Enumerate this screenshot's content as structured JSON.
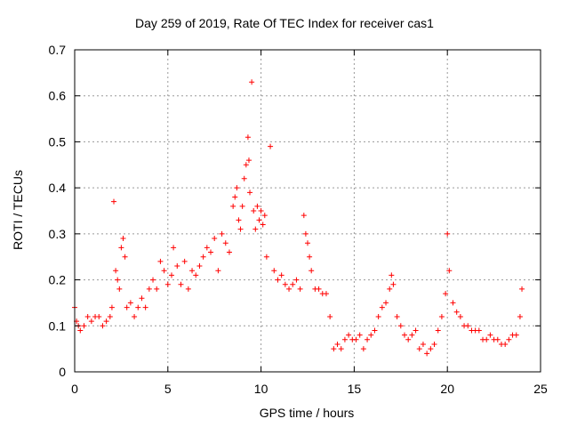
{
  "chart_data": {
    "type": "scatter",
    "title": "Day 259 of 2019, Rate Of TEC Index for receiver cas1",
    "xlabel": "GPS time / hours",
    "ylabel": "ROTI / TECUs",
    "xlim": [
      0,
      25
    ],
    "ylim": [
      0,
      0.7
    ],
    "xticks": [
      0,
      5,
      10,
      15,
      20,
      25
    ],
    "yticks": [
      0,
      0.1,
      0.2,
      0.3,
      0.4,
      0.5,
      0.6,
      0.7
    ],
    "xtick_labels": [
      "0",
      "5",
      "10",
      "15",
      "20",
      "25"
    ],
    "ytick_labels": [
      "0",
      "0.1",
      "0.2",
      "0.3",
      "0.4",
      "0.5",
      "0.6",
      "0.7"
    ],
    "grid": true,
    "marker": "+",
    "marker_color": "#ff0000",
    "series": [
      {
        "name": "ROTI",
        "x": [
          0.0,
          0.1,
          0.2,
          0.3,
          0.5,
          0.7,
          0.9,
          1.1,
          1.3,
          1.5,
          1.7,
          1.9,
          2.0,
          2.1,
          2.2,
          2.3,
          2.4,
          2.5,
          2.6,
          2.7,
          2.8,
          3.0,
          3.2,
          3.4,
          3.6,
          3.8,
          4.0,
          4.2,
          4.4,
          4.6,
          4.8,
          5.0,
          5.2,
          5.3,
          5.5,
          5.7,
          5.9,
          6.1,
          6.3,
          6.5,
          6.7,
          6.9,
          7.1,
          7.3,
          7.5,
          7.7,
          7.9,
          8.1,
          8.3,
          8.5,
          8.6,
          8.7,
          8.8,
          8.9,
          9.0,
          9.1,
          9.2,
          9.3,
          9.35,
          9.4,
          9.5,
          9.6,
          9.7,
          9.8,
          9.9,
          10.0,
          10.1,
          10.2,
          10.3,
          10.5,
          10.7,
          10.9,
          11.1,
          11.3,
          11.5,
          11.7,
          11.9,
          12.1,
          12.3,
          12.4,
          12.5,
          12.6,
          12.7,
          12.9,
          13.1,
          13.3,
          13.5,
          13.7,
          13.9,
          14.1,
          14.3,
          14.5,
          14.7,
          14.9,
          15.1,
          15.3,
          15.5,
          15.7,
          15.9,
          16.1,
          16.3,
          16.5,
          16.7,
          16.9,
          17.0,
          17.1,
          17.3,
          17.5,
          17.7,
          17.9,
          18.1,
          18.3,
          18.5,
          18.7,
          18.9,
          19.1,
          19.3,
          19.5,
          19.7,
          19.9,
          20.0,
          20.1,
          20.3,
          20.5,
          20.7,
          20.9,
          21.1,
          21.3,
          21.5,
          21.7,
          21.9,
          22.1,
          22.3,
          22.5,
          22.7,
          22.9,
          23.1,
          23.3,
          23.5,
          23.7,
          23.9,
          24.0
        ],
        "y": [
          0.14,
          0.11,
          0.1,
          0.09,
          0.1,
          0.12,
          0.11,
          0.12,
          0.12,
          0.1,
          0.11,
          0.12,
          0.14,
          0.37,
          0.22,
          0.2,
          0.18,
          0.27,
          0.29,
          0.25,
          0.14,
          0.15,
          0.12,
          0.14,
          0.16,
          0.14,
          0.18,
          0.2,
          0.18,
          0.24,
          0.22,
          0.19,
          0.21,
          0.27,
          0.23,
          0.19,
          0.24,
          0.18,
          0.22,
          0.21,
          0.23,
          0.25,
          0.27,
          0.26,
          0.29,
          0.22,
          0.3,
          0.28,
          0.26,
          0.36,
          0.38,
          0.4,
          0.33,
          0.31,
          0.36,
          0.42,
          0.45,
          0.51,
          0.46,
          0.39,
          0.63,
          0.35,
          0.31,
          0.36,
          0.33,
          0.35,
          0.32,
          0.34,
          0.25,
          0.49,
          0.22,
          0.2,
          0.21,
          0.19,
          0.18,
          0.19,
          0.2,
          0.18,
          0.34,
          0.3,
          0.28,
          0.25,
          0.22,
          0.18,
          0.18,
          0.17,
          0.17,
          0.12,
          0.05,
          0.06,
          0.05,
          0.07,
          0.08,
          0.07,
          0.07,
          0.08,
          0.05,
          0.07,
          0.08,
          0.09,
          0.12,
          0.14,
          0.15,
          0.18,
          0.21,
          0.19,
          0.12,
          0.1,
          0.08,
          0.07,
          0.08,
          0.09,
          0.05,
          0.06,
          0.04,
          0.05,
          0.06,
          0.09,
          0.12,
          0.17,
          0.3,
          0.22,
          0.15,
          0.13,
          0.12,
          0.1,
          0.1,
          0.09,
          0.09,
          0.09,
          0.07,
          0.07,
          0.08,
          0.07,
          0.07,
          0.06,
          0.06,
          0.07,
          0.08,
          0.08,
          0.12,
          0.18
        ]
      }
    ]
  }
}
